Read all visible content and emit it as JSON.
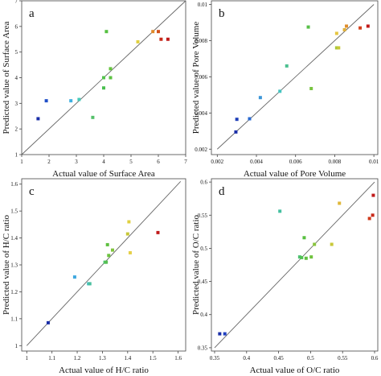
{
  "chart_data": [
    {
      "type": "scatter",
      "panel_label": "a",
      "xlabel": "Actual value of Surface Area",
      "ylabel": "Predicted value of Surface Area",
      "xlim": [
        1,
        7
      ],
      "ylim": [
        1,
        7
      ],
      "xticks": [
        1,
        2,
        3,
        4,
        5,
        6,
        7
      ],
      "yticks": [
        1,
        2,
        3,
        4,
        5,
        6,
        7
      ],
      "xtick_labels": [
        "1",
        "2",
        "3",
        "4",
        "5",
        "6",
        "7"
      ],
      "ytick_labels": [
        "1",
        "2",
        "3",
        "4",
        "5",
        "6",
        "7"
      ],
      "diagonal": [
        [
          1,
          1
        ],
        [
          7,
          7
        ]
      ],
      "points": [
        {
          "x": 1.6,
          "y": 2.4,
          "color": "#1a2ea8"
        },
        {
          "x": 1.9,
          "y": 3.1,
          "color": "#1f4fc8"
        },
        {
          "x": 2.8,
          "y": 3.1,
          "color": "#3fb0e0"
        },
        {
          "x": 3.1,
          "y": 3.15,
          "color": "#46c9b8"
        },
        {
          "x": 3.6,
          "y": 2.45,
          "color": "#55c06a"
        },
        {
          "x": 4.0,
          "y": 3.6,
          "color": "#4ac050"
        },
        {
          "x": 4.0,
          "y": 4.0,
          "color": "#52c24a"
        },
        {
          "x": 4.1,
          "y": 5.8,
          "color": "#55c040"
        },
        {
          "x": 4.25,
          "y": 4.0,
          "color": "#5cc242"
        },
        {
          "x": 4.25,
          "y": 4.35,
          "color": "#66c43e"
        },
        {
          "x": 5.25,
          "y": 5.4,
          "color": "#e0d040"
        },
        {
          "x": 5.8,
          "y": 5.8,
          "color": "#e08a2a"
        },
        {
          "x": 6.0,
          "y": 5.8,
          "color": "#d2501a"
        },
        {
          "x": 6.1,
          "y": 5.5,
          "color": "#c82a1a"
        },
        {
          "x": 6.35,
          "y": 5.5,
          "color": "#c01a1a"
        }
      ]
    },
    {
      "type": "scatter",
      "panel_label": "b",
      "xlabel": "Actual value of Pore Volume",
      "ylabel": "Predicted value of Pore Volume",
      "xlim": [
        0.0017,
        0.0102
      ],
      "ylim": [
        0.0017,
        0.0102
      ],
      "xticks": [
        0.002,
        0.004,
        0.006,
        0.008,
        0.01
      ],
      "yticks": [
        0.002,
        0.004,
        0.006,
        0.008,
        0.01
      ],
      "xtick_labels": [
        "0.002",
        "0.004",
        "0.006",
        "0.008",
        "0.01"
      ],
      "ytick_labels": [
        "0.002",
        "0.004",
        "0.006",
        "0.008",
        "0.01"
      ],
      "diagonal": [
        [
          0.002,
          0.002
        ],
        [
          0.01,
          0.01
        ]
      ],
      "points": [
        {
          "x": 0.00295,
          "y": 0.00295,
          "color": "#1a2ea8"
        },
        {
          "x": 0.003,
          "y": 0.00365,
          "color": "#1f3fb8"
        },
        {
          "x": 0.00365,
          "y": 0.00368,
          "color": "#2a6ad0"
        },
        {
          "x": 0.0042,
          "y": 0.00485,
          "color": "#3c96d8"
        },
        {
          "x": 0.0052,
          "y": 0.0052,
          "color": "#44c4c0"
        },
        {
          "x": 0.00555,
          "y": 0.0066,
          "color": "#4cc090"
        },
        {
          "x": 0.00665,
          "y": 0.00875,
          "color": "#58c048"
        },
        {
          "x": 0.0068,
          "y": 0.00535,
          "color": "#78c440"
        },
        {
          "x": 0.0081,
          "y": 0.0076,
          "color": "#a8c83a"
        },
        {
          "x": 0.0082,
          "y": 0.0076,
          "color": "#c8c838"
        },
        {
          "x": 0.0081,
          "y": 0.0084,
          "color": "#e6c640"
        },
        {
          "x": 0.0085,
          "y": 0.0086,
          "color": "#e0b03a"
        },
        {
          "x": 0.0086,
          "y": 0.0088,
          "color": "#e08e2a"
        },
        {
          "x": 0.0093,
          "y": 0.0087,
          "color": "#d4401c"
        },
        {
          "x": 0.0097,
          "y": 0.0088,
          "color": "#c01a1a"
        }
      ]
    },
    {
      "type": "scatter",
      "panel_label": "c",
      "xlabel": "Actual value of H/C ratio",
      "ylabel": "Predicted value of H/C ratio",
      "xlim": [
        0.98,
        1.63
      ],
      "ylim": [
        0.98,
        1.62
      ],
      "xticks": [
        1,
        1.1,
        1.2,
        1.3,
        1.4,
        1.5,
        1.6
      ],
      "yticks": [
        1,
        1.1,
        1.2,
        1.3,
        1.4,
        1.5,
        1.6
      ],
      "xtick_labels": [
        "1",
        "1.1",
        "1.2",
        "1.3",
        "1.4",
        "1.5",
        "1.6"
      ],
      "ytick_labels": [
        "1",
        "1.1",
        "1.2",
        "1.3",
        "1.4",
        "1.5",
        "1.6"
      ],
      "diagonal": [
        [
          1,
          1
        ],
        [
          1.61,
          1.61
        ]
      ],
      "points": [
        {
          "x": 1.085,
          "y": 1.085,
          "color": "#1a2ea8"
        },
        {
          "x": 1.19,
          "y": 1.255,
          "color": "#3fa8e0"
        },
        {
          "x": 1.245,
          "y": 1.23,
          "color": "#44c0c0"
        },
        {
          "x": 1.25,
          "y": 1.23,
          "color": "#4ac0a0"
        },
        {
          "x": 1.31,
          "y": 1.31,
          "color": "#50c070"
        },
        {
          "x": 1.315,
          "y": 1.31,
          "color": "#56c050"
        },
        {
          "x": 1.32,
          "y": 1.375,
          "color": "#5ec040"
        },
        {
          "x": 1.325,
          "y": 1.335,
          "color": "#6cc23e"
        },
        {
          "x": 1.34,
          "y": 1.355,
          "color": "#80c43c"
        },
        {
          "x": 1.4,
          "y": 1.415,
          "color": "#c8c838"
        },
        {
          "x": 1.405,
          "y": 1.46,
          "color": "#e0d040"
        },
        {
          "x": 1.41,
          "y": 1.345,
          "color": "#e6d048"
        },
        {
          "x": 1.52,
          "y": 1.42,
          "color": "#c01a1a"
        }
      ]
    },
    {
      "type": "scatter",
      "panel_label": "d",
      "xlabel": "Actual value of O/C ratio",
      "ylabel": "Predicted value of O/C ratio",
      "xlim": [
        0.345,
        0.605
      ],
      "ylim": [
        0.345,
        0.605
      ],
      "xticks": [
        0.35,
        0.4,
        0.45,
        0.5,
        0.55,
        0.6
      ],
      "yticks": [
        0.35,
        0.4,
        0.45,
        0.5,
        0.55,
        0.6
      ],
      "xtick_labels": [
        "0.35",
        "0.4",
        "0.45",
        "0.5",
        "0.55",
        "0.6"
      ],
      "ytick_labels": [
        "0.35",
        "0.4",
        "0.45",
        "0.5",
        "0.55",
        "0.6"
      ],
      "diagonal": [
        [
          0.35,
          0.35
        ],
        [
          0.6,
          0.6
        ]
      ],
      "points": [
        {
          "x": 0.358,
          "y": 0.371,
          "color": "#1a2ea8"
        },
        {
          "x": 0.366,
          "y": 0.371,
          "color": "#1f3fc0"
        },
        {
          "x": 0.452,
          "y": 0.556,
          "color": "#44c0a0"
        },
        {
          "x": 0.483,
          "y": 0.487,
          "color": "#4cc070"
        },
        {
          "x": 0.486,
          "y": 0.486,
          "color": "#52c050"
        },
        {
          "x": 0.49,
          "y": 0.516,
          "color": "#58c040"
        },
        {
          "x": 0.493,
          "y": 0.485,
          "color": "#60c040"
        },
        {
          "x": 0.501,
          "y": 0.487,
          "color": "#70c23e"
        },
        {
          "x": 0.506,
          "y": 0.506,
          "color": "#88c43c"
        },
        {
          "x": 0.533,
          "y": 0.506,
          "color": "#c8c838"
        },
        {
          "x": 0.545,
          "y": 0.568,
          "color": "#e0b83a"
        },
        {
          "x": 0.592,
          "y": 0.545,
          "color": "#d03a1c"
        },
        {
          "x": 0.597,
          "y": 0.55,
          "color": "#c82a1a"
        },
        {
          "x": 0.598,
          "y": 0.58,
          "color": "#c01a1a"
        }
      ]
    }
  ]
}
